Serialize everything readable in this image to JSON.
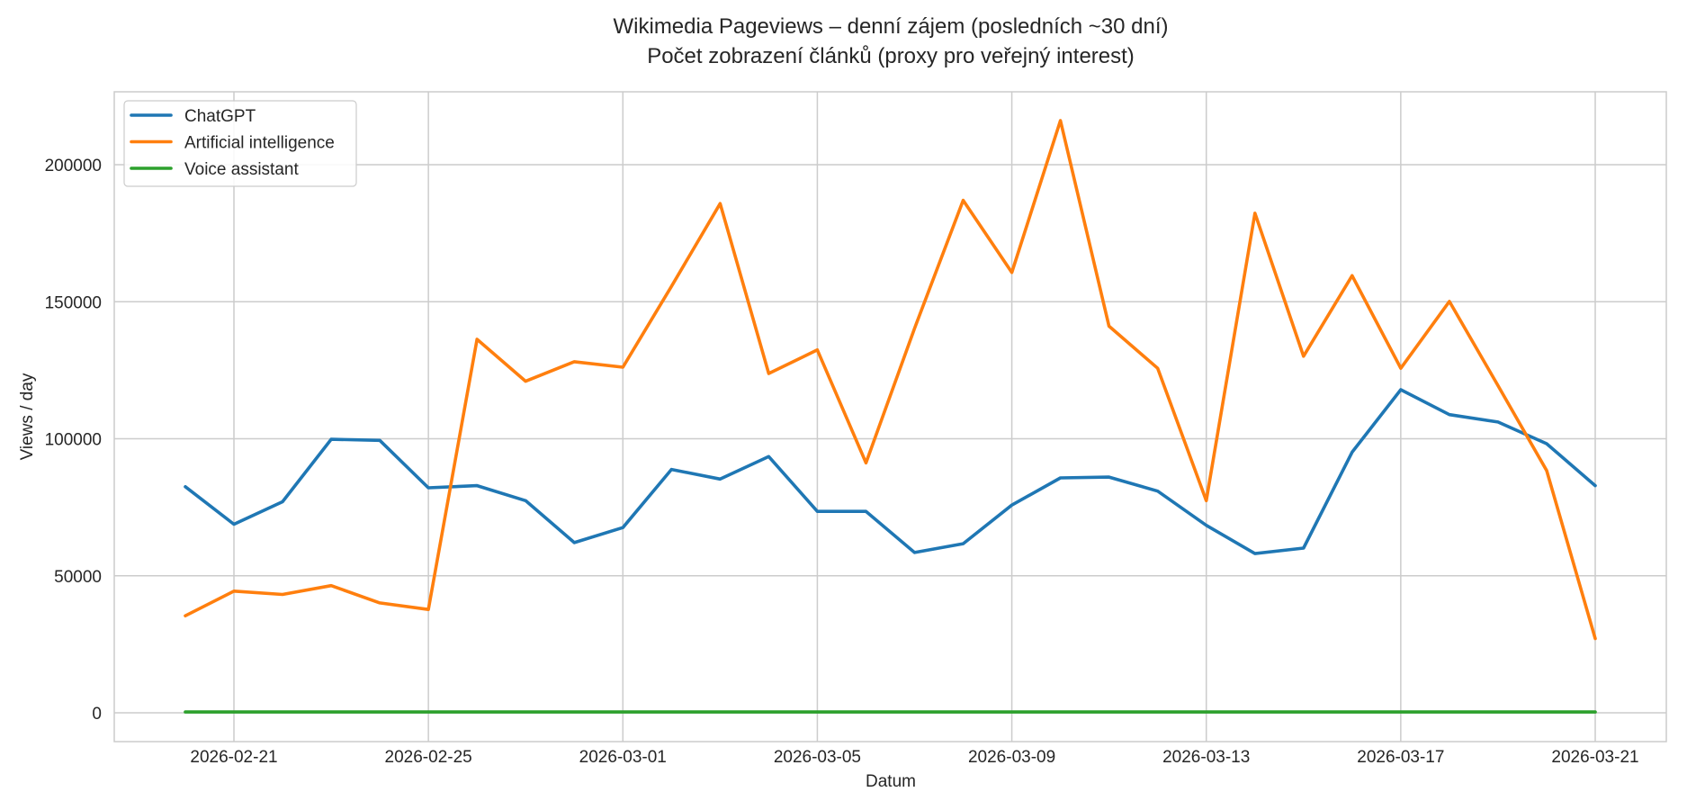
{
  "chart_data": {
    "type": "line",
    "title": "Wikimedia Pageviews – denní zájem (posledních ~30 dní)",
    "subtitle": "Počet zobrazení článků (proxy pro veřejný interest)",
    "xlabel": "Datum",
    "ylabel": "Views / day",
    "ylim": [
      -10000,
      226000
    ],
    "yticks": [
      0,
      50000,
      100000,
      150000,
      200000
    ],
    "xticks": [
      "2026-02-21",
      "2026-02-25",
      "2026-03-01",
      "2026-03-05",
      "2026-03-09",
      "2026-03-13",
      "2026-03-17",
      "2026-03-21"
    ],
    "grid": true,
    "legend_position": "upper left",
    "x": [
      "2026-02-20",
      "2026-02-21",
      "2026-02-22",
      "2026-02-23",
      "2026-02-24",
      "2026-02-25",
      "2026-02-26",
      "2026-02-27",
      "2026-02-28",
      "2026-03-01",
      "2026-03-02",
      "2026-03-03",
      "2026-03-04",
      "2026-03-05",
      "2026-03-06",
      "2026-03-07",
      "2026-03-08",
      "2026-03-09",
      "2026-03-10",
      "2026-03-11",
      "2026-03-12",
      "2026-03-13",
      "2026-03-14",
      "2026-03-15",
      "2026-03-16",
      "2026-03-17",
      "2026-03-18",
      "2026-03-19",
      "2026-03-20",
      "2026-03-21"
    ],
    "series": [
      {
        "name": "ChatGPT",
        "color": "#1f77b4",
        "values": [
          82500,
          68800,
          77000,
          99800,
          99400,
          82100,
          82900,
          77400,
          62100,
          67600,
          88800,
          85300,
          93500,
          73500,
          73500,
          58500,
          61700,
          75800,
          85700,
          86000,
          80900,
          68400,
          58100,
          60100,
          95100,
          117900,
          108800,
          106100,
          98200,
          82900
        ]
      },
      {
        "name": "Artificial intelligence",
        "color": "#ff7f0e",
        "values": [
          35400,
          44400,
          43200,
          46400,
          40100,
          37700,
          136300,
          121000,
          128100,
          126100,
          155600,
          185800,
          123800,
          132400,
          91200,
          140300,
          187000,
          160700,
          216100,
          141100,
          125700,
          77400,
          182300,
          130100,
          159500,
          125700,
          150100,
          119400,
          88400,
          27100
        ]
      },
      {
        "name": "Voice assistant",
        "color": "#2ca02c",
        "values": [
          300,
          300,
          300,
          300,
          300,
          300,
          300,
          300,
          300,
          300,
          300,
          300,
          300,
          300,
          300,
          300,
          300,
          300,
          300,
          300,
          300,
          300,
          300,
          300,
          300,
          300,
          300,
          300,
          300,
          300
        ]
      }
    ]
  }
}
